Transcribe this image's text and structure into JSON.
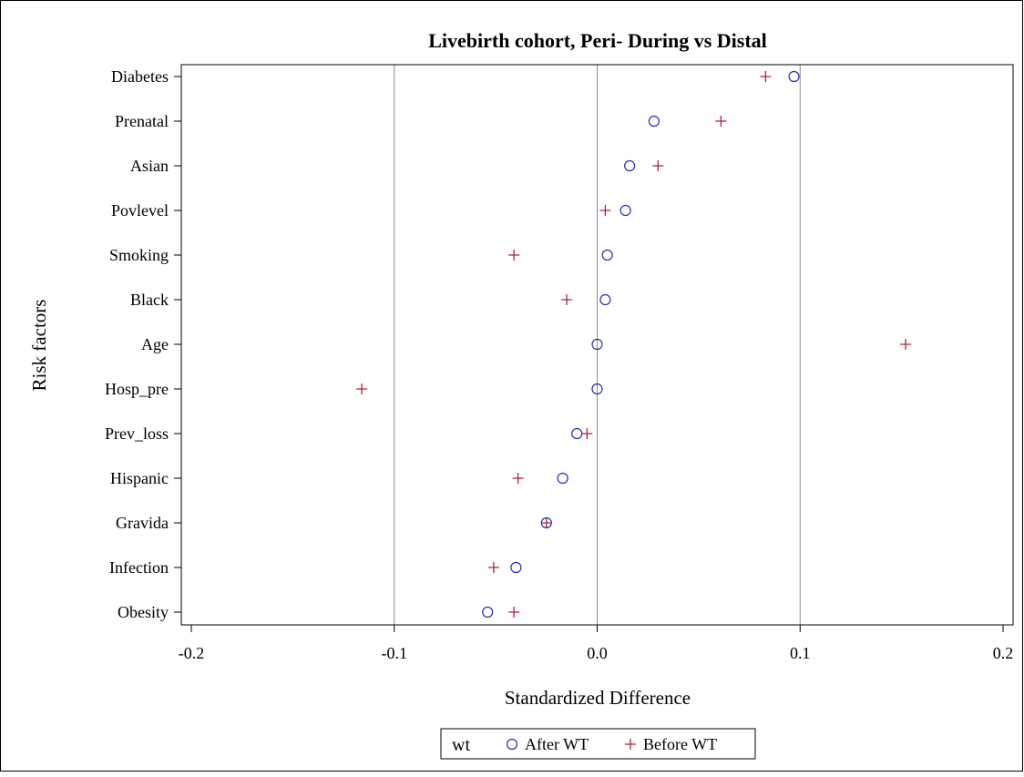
{
  "chart_data": {
    "type": "scatter",
    "title": "Livebirth cohort, Peri- During vs Distal",
    "xlabel": "Standardized Difference",
    "ylabel": "Risk factors",
    "xlim": [
      -0.2,
      0.2
    ],
    "x_ticks": [
      -0.2,
      -0.1,
      0.0,
      0.1,
      0.2
    ],
    "x_tick_labels": [
      "-0.2",
      "-0.1",
      "0.0",
      "0.1",
      "0.2"
    ],
    "reference_lines": [
      -0.1,
      0.0,
      0.1
    ],
    "categories": [
      "Diabetes",
      "Prenatal",
      "Asian",
      "Povlevel",
      "Smoking",
      "Black",
      "Age",
      "Hosp_pre",
      "Prev_loss",
      "Hispanic",
      "Gravida",
      "Infection",
      "Obesity"
    ],
    "series": [
      {
        "name": "After WT",
        "marker": "circle",
        "color": "#2a2ab8",
        "values": [
          0.097,
          0.028,
          0.016,
          0.014,
          0.005,
          0.004,
          0.0,
          0.0,
          -0.01,
          -0.017,
          -0.025,
          -0.04,
          -0.054
        ]
      },
      {
        "name": "Before WT",
        "marker": "plus",
        "color": "#b0203a",
        "values": [
          0.083,
          0.061,
          0.03,
          0.004,
          -0.041,
          -0.015,
          0.152,
          -0.116,
          -0.005,
          -0.039,
          -0.025,
          -0.051,
          -0.041
        ]
      }
    ],
    "legend": {
      "title": "wt",
      "placement": "bottom-center"
    },
    "grid": false
  }
}
